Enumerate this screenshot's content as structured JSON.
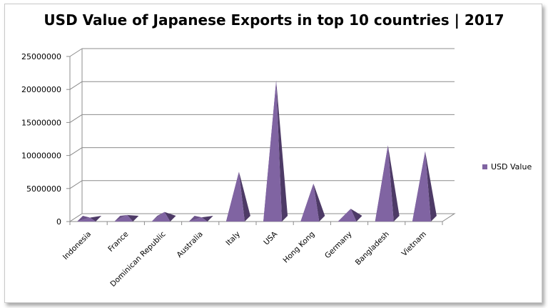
{
  "chart_data": {
    "type": "bar",
    "title": "USD Value of Japanese Exports in top 10 countries | 2017",
    "categories": [
      "Indonesia",
      "France",
      "Dominican Republic",
      "Australia",
      "Italy",
      "USA",
      "Hong Kong",
      "Germany",
      "Bangladesh",
      "Vietnam"
    ],
    "series": [
      {
        "name": "USD Value",
        "color": "#8064a2",
        "values": [
          50000,
          450000,
          900000,
          100000,
          7000000,
          20800000,
          5200000,
          1400000,
          11000000,
          10100000
        ]
      }
    ],
    "ylim": [
      0,
      25000000
    ],
    "yticks": [
      0,
      5000000,
      10000000,
      15000000,
      20000000,
      25000000
    ],
    "grid": true,
    "legend": "right",
    "mark_shape": "pyramid"
  }
}
